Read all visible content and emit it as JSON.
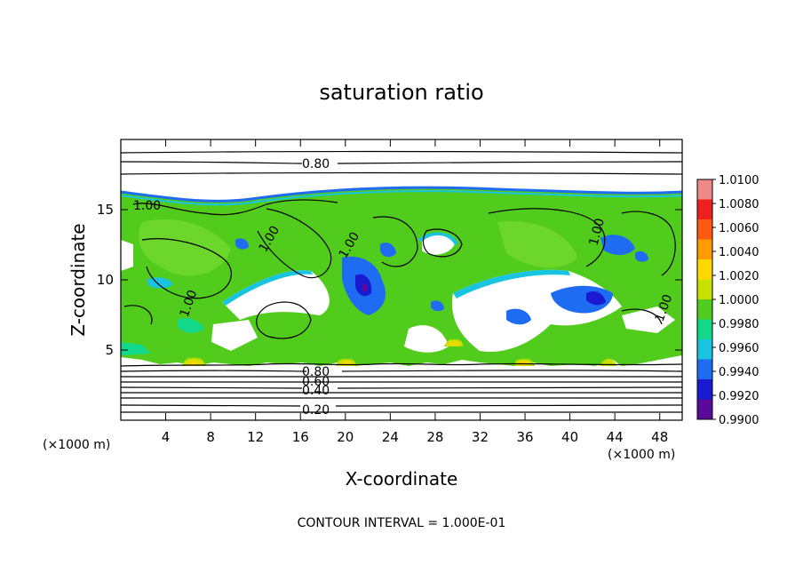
{
  "chart_data": {
    "type": "heatmap",
    "title": "saturation ratio",
    "xlabel": "X-coordinate",
    "ylabel": "Z-coordinate",
    "x_unit": "(×1000 m)",
    "z_unit": "(×1000 m)",
    "xlim": [
      0,
      50
    ],
    "ylim": [
      0,
      20
    ],
    "x_ticks": [
      4,
      8,
      12,
      16,
      20,
      24,
      28,
      32,
      36,
      40,
      44,
      48
    ],
    "y_ticks": [
      5,
      10,
      15
    ],
    "colorbar": {
      "ticks": [
        "1.0100",
        "1.0080",
        "1.0060",
        "1.0040",
        "1.0020",
        "1.0000",
        "0.9980",
        "0.9960",
        "0.9940",
        "0.9920",
        "0.9900"
      ],
      "colors": [
        "#f08a8a",
        "#ee2020",
        "#ff5a10",
        "#ff9a00",
        "#ffd800",
        "#c8e000",
        "#52cc1c",
        "#12d88a",
        "#18c4e0",
        "#1e6cf2",
        "#1a1ad2",
        "#5a0a9a"
      ]
    },
    "contour_labels": [
      "0.80",
      "1.00",
      "1.00",
      "1.00",
      "1.00",
      "1.00",
      "1.00",
      "0.80",
      "0.60",
      "0.40",
      "0.20"
    ],
    "contour_interval": "CONTOUR INTERVAL = 1.000E-01"
  }
}
